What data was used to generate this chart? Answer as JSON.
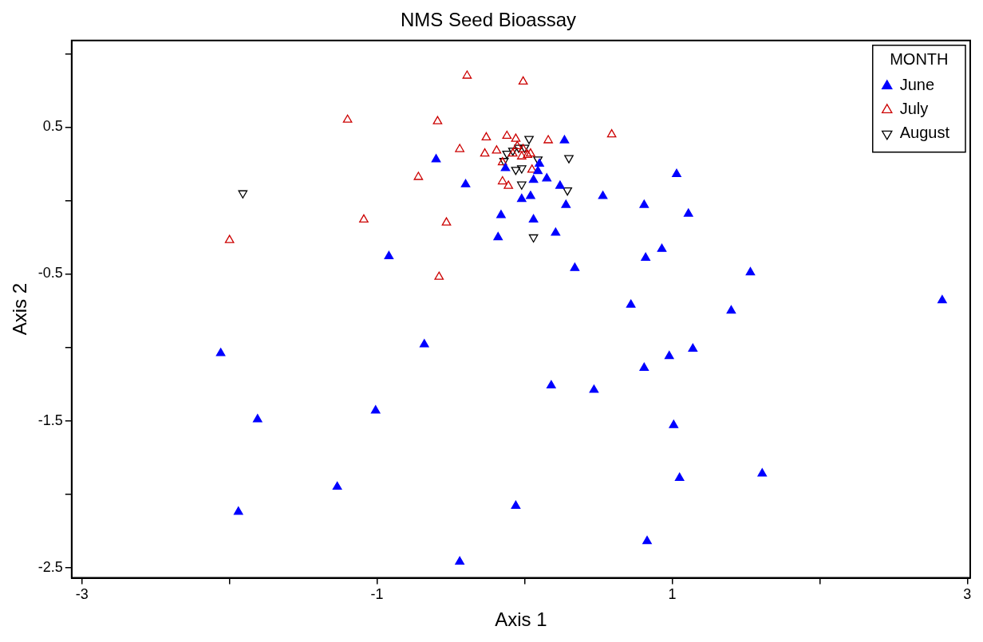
{
  "chart_data": {
    "type": "scatter",
    "title": "NMS Seed Bioassay",
    "xlabel": "Axis 1",
    "ylabel": "Axis 2",
    "legend_title": "MONTH",
    "legend": "top right",
    "grid": false,
    "marker": "triangle",
    "xlim": [
      -3.07,
      3.02
    ],
    "ylim": [
      -2.57,
      1.09
    ],
    "xticks": [
      -3,
      {
        "value": -2,
        "label": null
      },
      -1,
      {
        "value": 0,
        "label": null
      },
      1,
      {
        "value": 2,
        "label": null
      },
      3
    ],
    "yticks": [
      {
        "value": 1,
        "label": null
      },
      0.5,
      {
        "value": 0,
        "label": null
      },
      -0.5,
      {
        "value": -1,
        "label": null
      },
      -1.5,
      {
        "value": -2,
        "label": null
      },
      -2.5
    ],
    "series": [
      {
        "name": "June",
        "color": "#0000ff",
        "marker": "triangle",
        "x": [
          -0.6,
          -0.4,
          0.27,
          0.1,
          0.09,
          0.06,
          0.15,
          0.24,
          0.28,
          -0.02,
          0.04,
          -0.16,
          0.06,
          -0.18,
          0.21,
          -0.13,
          0.53,
          0.81,
          1.03,
          1.11,
          0.82,
          0.93,
          0.34,
          0.72,
          -0.92,
          1.53,
          1.4,
          2.83,
          -2.06,
          -0.68,
          1.14,
          0.98,
          0.81,
          0.18,
          0.47,
          -1.81,
          -1.01,
          1.01,
          1.61,
          1.05,
          -1.27,
          -1.94,
          -0.06,
          0.83,
          -0.44
        ],
        "values": [
          0.28,
          0.11,
          0.41,
          0.25,
          0.2,
          0.14,
          0.15,
          0.1,
          -0.03,
          0.01,
          0.03,
          -0.1,
          -0.13,
          -0.25,
          -0.22,
          0.22,
          0.03,
          -0.03,
          0.18,
          -0.09,
          -0.39,
          -0.33,
          -0.46,
          -0.71,
          -0.38,
          -0.49,
          -0.75,
          -0.68,
          -1.04,
          -0.98,
          -1.01,
          -1.06,
          -1.14,
          -1.26,
          -1.29,
          -1.49,
          -1.43,
          -1.53,
          -1.86,
          -1.89,
          -1.95,
          -2.12,
          -2.08,
          -2.32,
          -2.46
        ]
      },
      {
        "name": "July",
        "color": "#cc0000",
        "marker": "triangle-open",
        "x": [
          -0.39,
          -0.01,
          -1.2,
          -0.59,
          0.59,
          -2.0,
          -1.09,
          -0.72,
          -0.53,
          -0.58,
          -0.44,
          -0.26,
          -0.27,
          -0.19,
          0.16,
          -0.15,
          -0.11,
          -0.12,
          -0.06,
          0.04,
          0.05,
          -0.05,
          -0.01,
          0.02,
          -0.08,
          -0.02,
          -0.15
        ],
        "values": [
          0.85,
          0.81,
          0.55,
          0.54,
          0.45,
          -0.27,
          -0.13,
          0.16,
          -0.15,
          -0.52,
          0.35,
          0.43,
          0.32,
          0.34,
          0.41,
          0.13,
          0.1,
          0.44,
          0.42,
          0.32,
          0.21,
          0.37,
          0.35,
          0.31,
          0.32,
          0.3,
          0.26
        ]
      },
      {
        "name": "August",
        "color": "#000000",
        "marker": "triangle-down-open",
        "x": [
          -1.91,
          0.03,
          0.3,
          0.29,
          0.06,
          -0.02,
          -0.14,
          -0.06,
          -0.02,
          0.09,
          -0.12,
          -0.04,
          0.0,
          -0.08
        ],
        "values": [
          0.05,
          0.42,
          0.29,
          0.07,
          -0.25,
          0.11,
          0.27,
          0.21,
          0.22,
          0.28,
          0.32,
          0.36,
          0.36,
          0.34
        ]
      }
    ]
  }
}
